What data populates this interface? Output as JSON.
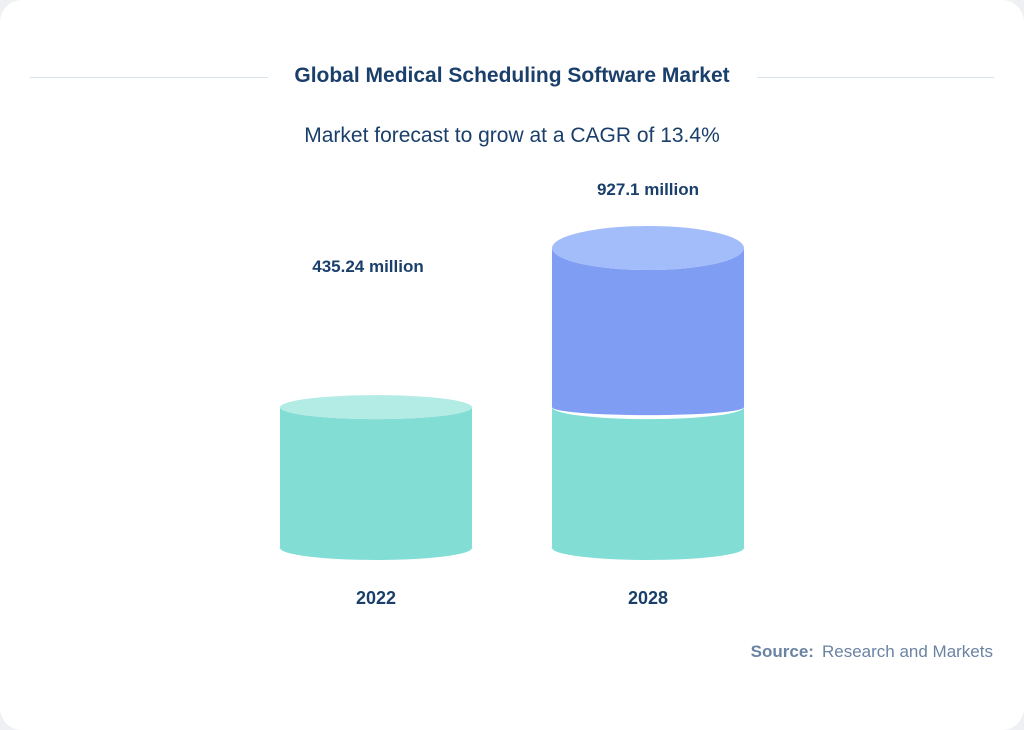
{
  "chart_data": {
    "type": "bar",
    "style": "3d-cylinder",
    "title": "Global Medical Scheduling Software Market",
    "subtitle": "Market forecast to grow at a CAGR of 13.4%",
    "categories": [
      "2022",
      "2028"
    ],
    "values": [
      435.24,
      927.1
    ],
    "data_labels": [
      "435.24 million",
      "927.1 million"
    ],
    "xlabel": "",
    "ylabel": "",
    "grid": false,
    "colors": {
      "base": "#82ded5",
      "base_top": "#b3ebe5",
      "growth": "#809df4",
      "growth_top": "#a3bdfa",
      "text": "#1a3f6b"
    }
  },
  "source": {
    "label": "Source:",
    "value": "Research and Markets"
  }
}
